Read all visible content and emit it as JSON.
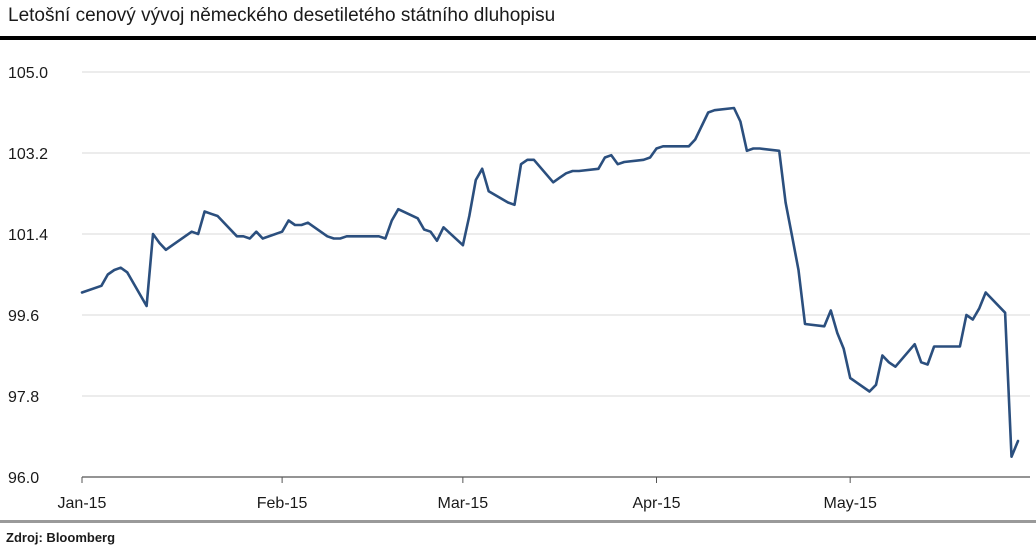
{
  "title": "Letošní cenový vývoj německého desetiletého státního dluhopisu",
  "source": "Zdroj: Bloomberg",
  "colors": {
    "line": "#2b4f7e",
    "grid": "#d9d9d9",
    "axis": "#555555",
    "rule_top": "#000000",
    "rule_bottom": "#9a9a9a"
  },
  "chart_data": {
    "type": "line",
    "title": "Letošní cenový vývoj německého desetiletého státního dluhopisu",
    "xlabel": "",
    "ylabel": "",
    "ylim": [
      96.0,
      105.0
    ],
    "yticks": [
      96.0,
      97.8,
      99.6,
      101.4,
      103.2,
      105.0
    ],
    "ytick_labels": [
      "96.0",
      "97.8",
      "99.6",
      "101.4",
      "103.2",
      "105.0"
    ],
    "xlim": [
      "2015-01-02",
      "2015-05-27"
    ],
    "xticks": [
      "2015-01-02",
      "2015-02-02",
      "2015-03-02",
      "2015-04-01",
      "2015-05-01"
    ],
    "xtick_labels": [
      "Jan-15",
      "Feb-15",
      "Mar-15",
      "Apr-15",
      "May-15"
    ],
    "grid": true,
    "series": [
      {
        "x": [
          "2015-01-02",
          "2015-01-05",
          "2015-01-06",
          "2015-01-07",
          "2015-01-08",
          "2015-01-09",
          "2015-01-12",
          "2015-01-13",
          "2015-01-14",
          "2015-01-15",
          "2015-01-16",
          "2015-01-19",
          "2015-01-20",
          "2015-01-21",
          "2015-01-22",
          "2015-01-23",
          "2015-01-26",
          "2015-01-27",
          "2015-01-28",
          "2015-01-29",
          "2015-01-30",
          "2015-02-02",
          "2015-02-03",
          "2015-02-04",
          "2015-02-05",
          "2015-02-06",
          "2015-02-09",
          "2015-02-10",
          "2015-02-11",
          "2015-02-12",
          "2015-02-13",
          "2015-02-16",
          "2015-02-17",
          "2015-02-18",
          "2015-02-19",
          "2015-02-20",
          "2015-02-23",
          "2015-02-24",
          "2015-02-25",
          "2015-02-26",
          "2015-02-27",
          "2015-03-02",
          "2015-03-03",
          "2015-03-04",
          "2015-03-05",
          "2015-03-06",
          "2015-03-09",
          "2015-03-10",
          "2015-03-11",
          "2015-03-12",
          "2015-03-13",
          "2015-03-16",
          "2015-03-17",
          "2015-03-18",
          "2015-03-19",
          "2015-03-20",
          "2015-03-23",
          "2015-03-24",
          "2015-03-25",
          "2015-03-26",
          "2015-03-27",
          "2015-03-30",
          "2015-03-31",
          "2015-04-01",
          "2015-04-02",
          "2015-04-03",
          "2015-04-06",
          "2015-04-07",
          "2015-04-08",
          "2015-04-09",
          "2015-04-10",
          "2015-04-13",
          "2015-04-14",
          "2015-04-15",
          "2015-04-16",
          "2015-04-17",
          "2015-04-20",
          "2015-04-21",
          "2015-04-22",
          "2015-04-23",
          "2015-04-24",
          "2015-04-27",
          "2015-04-28",
          "2015-04-29",
          "2015-04-30",
          "2015-05-01",
          "2015-05-04",
          "2015-05-05",
          "2015-05-06",
          "2015-05-07",
          "2015-05-08",
          "2015-05-11",
          "2015-05-12",
          "2015-05-13",
          "2015-05-14",
          "2015-05-15",
          "2015-05-18",
          "2015-05-19",
          "2015-05-20",
          "2015-05-21",
          "2015-05-22",
          "2015-05-25",
          "2015-05-26",
          "2015-05-27"
        ],
        "values": [
          100.1,
          100.25,
          100.5,
          100.6,
          100.65,
          100.55,
          99.8,
          101.4,
          101.2,
          101.05,
          101.15,
          101.45,
          101.4,
          101.9,
          101.85,
          101.8,
          101.35,
          101.35,
          101.3,
          101.45,
          101.3,
          101.45,
          101.7,
          101.6,
          101.6,
          101.65,
          101.35,
          101.3,
          101.3,
          101.35,
          101.35,
          101.35,
          101.35,
          101.3,
          101.7,
          101.95,
          101.75,
          101.5,
          101.45,
          101.25,
          101.55,
          101.15,
          101.8,
          102.6,
          102.85,
          102.35,
          102.1,
          102.05,
          102.95,
          103.05,
          103.05,
          102.55,
          102.65,
          102.75,
          102.8,
          102.8,
          102.85,
          103.1,
          103.15,
          102.95,
          103.0,
          103.05,
          103.1,
          103.3,
          103.35,
          103.35,
          103.35,
          103.5,
          103.8,
          104.1,
          104.15,
          104.2,
          103.9,
          103.25,
          103.3,
          103.3,
          103.25,
          102.1,
          101.35,
          100.6,
          99.4,
          99.35,
          99.7,
          99.2,
          98.85,
          98.2,
          97.9,
          98.05,
          98.7,
          98.55,
          98.45,
          98.95,
          98.55,
          98.5,
          98.9,
          98.9,
          98.9,
          99.6,
          99.5,
          99.75,
          100.1,
          99.65,
          96.45,
          96.8
        ]
      }
    ]
  }
}
